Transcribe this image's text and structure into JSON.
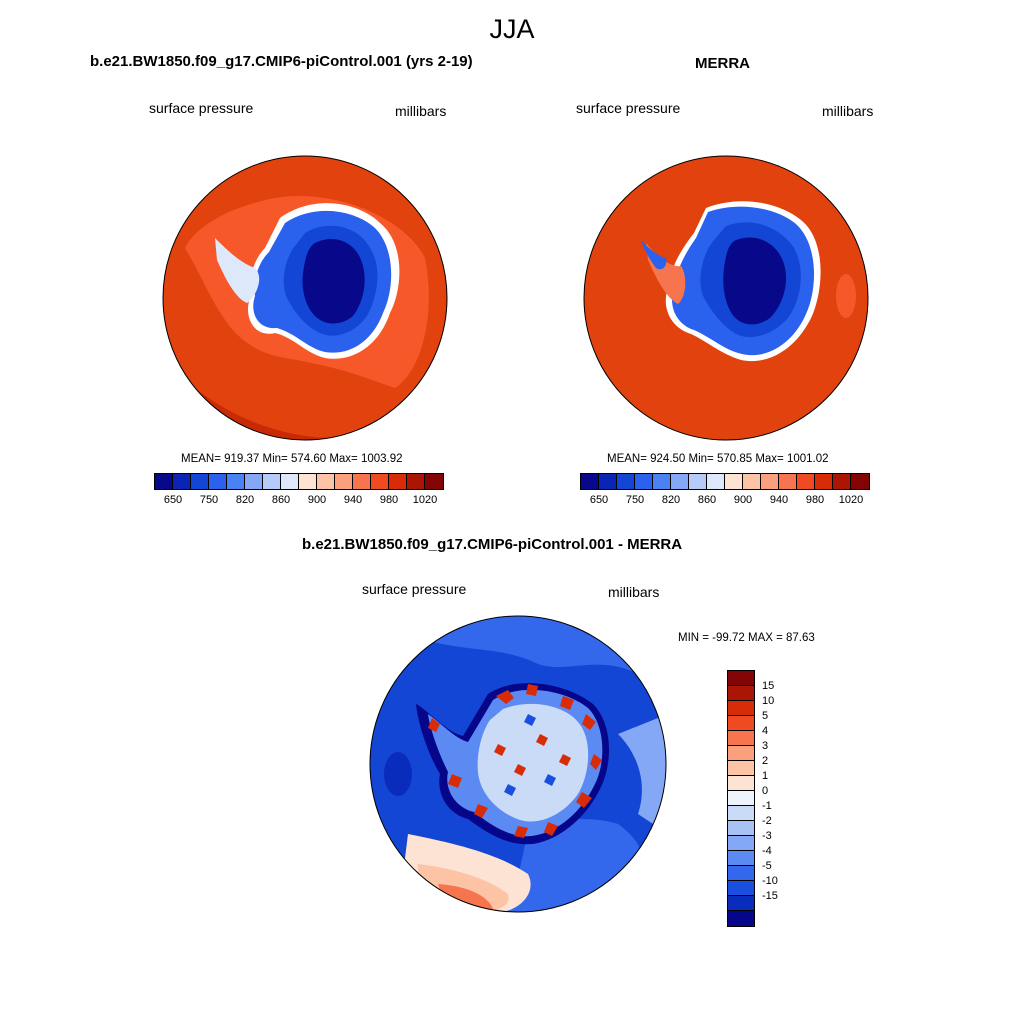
{
  "main_title": "JJA",
  "panels": {
    "model": {
      "title": "b.e21.BW1850.f09_g17.CMIP6-piControl.001 (yrs 2-19)",
      "left_label": "surface pressure",
      "right_label": "millibars",
      "stats": "MEAN= 919.37  Min= 574.60  Max= 1003.92"
    },
    "obs": {
      "title": "MERRA",
      "left_label": "surface pressure",
      "right_label": "millibars",
      "stats": "MEAN= 924.50  Min= 570.85  Max= 1001.02"
    },
    "diff": {
      "title": "b.e21.BW1850.f09_g17.CMIP6-piControl.001 - MERRA",
      "left_label": "surface pressure",
      "right_label": "millibars",
      "minmax": "MIN = -99.72 MAX =  87.63"
    }
  },
  "colorbar_horizontal": {
    "colors": [
      "#08088a",
      "#0a24b4",
      "#1446d6",
      "#2a62ee",
      "#4a82f4",
      "#84a8f6",
      "#b6ccf8",
      "#dde8fb",
      "#fde3d4",
      "#fcc3a4",
      "#faa07c",
      "#f6754e",
      "#ef4a22",
      "#d82c08",
      "#ab1604",
      "#820404"
    ],
    "tick_labels": [
      "650",
      "750",
      "820",
      "860",
      "900",
      "940",
      "980",
      "1020"
    ]
  },
  "colorbar_vertical": {
    "colors": [
      "#820404",
      "#ab1604",
      "#d82c08",
      "#ef4a22",
      "#f6754e",
      "#faa07c",
      "#fcc3a4",
      "#fde3d4",
      "#eef3fc",
      "#cadbf8",
      "#a8c2f6",
      "#84a8f6",
      "#5a8af2",
      "#3468ec",
      "#1a4ede",
      "#0a2cbc",
      "#06068a"
    ],
    "tick_labels": [
      "15",
      "10",
      "5",
      "4",
      "3",
      "2",
      "1",
      "0",
      "-1",
      "-2",
      "-3",
      "-4",
      "-5",
      "-10",
      "-15"
    ]
  }
}
